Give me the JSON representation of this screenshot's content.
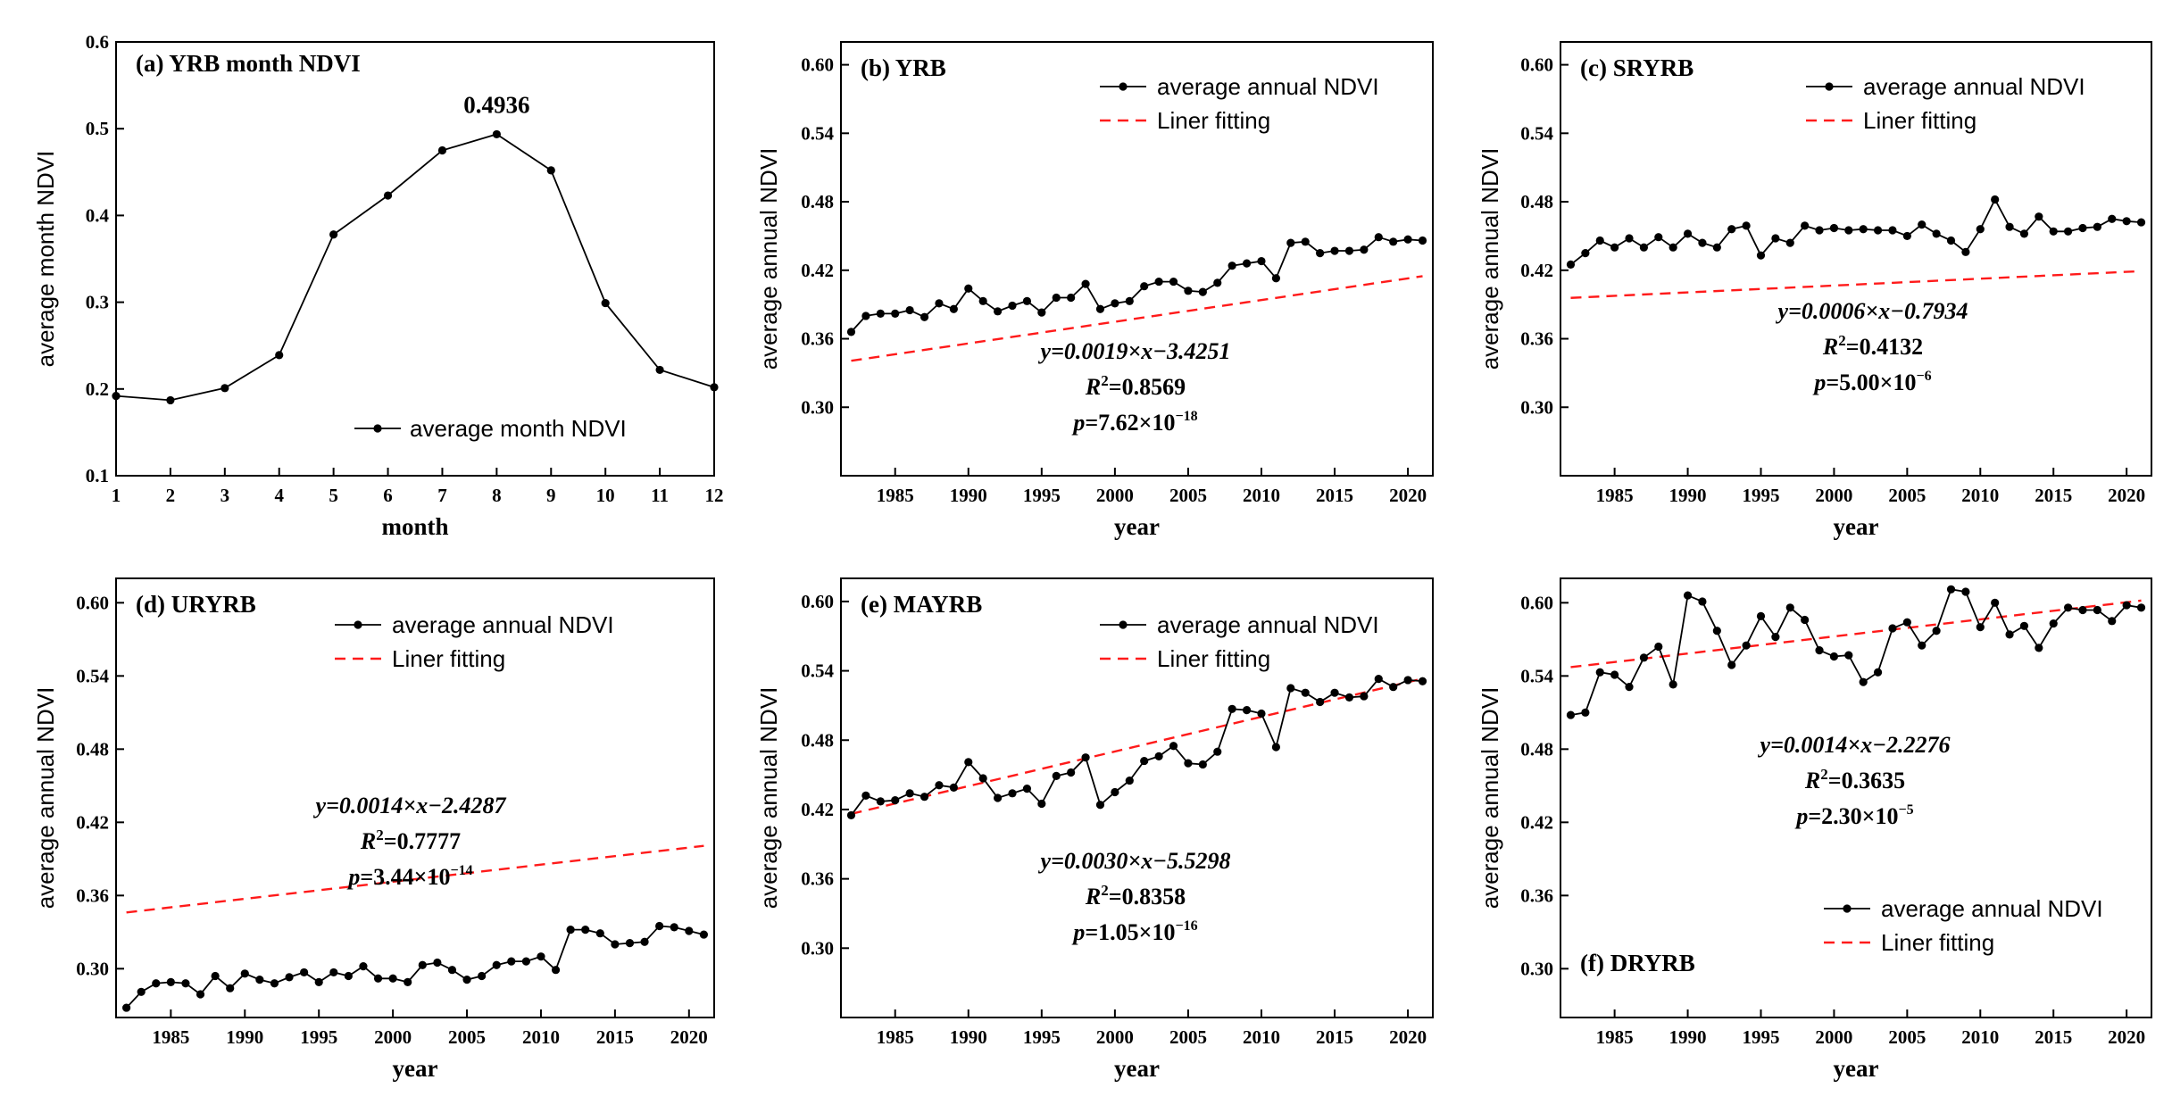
{
  "chart_data": [
    {
      "id": "a",
      "type": "line",
      "title": "(a) YRB month NDVI",
      "xlabel": "month",
      "ylabel": "average month NDVI",
      "xlim": [
        1,
        12
      ],
      "ylim": [
        0.1,
        0.6
      ],
      "xticks": [
        1,
        2,
        3,
        4,
        5,
        6,
        7,
        8,
        9,
        10,
        11,
        12
      ],
      "xtick_labels": [
        "1",
        "2",
        "3",
        "4",
        "5",
        "6",
        "7",
        "8",
        "9",
        "10",
        "11",
        "12"
      ],
      "yticks": [
        0.1,
        0.2,
        0.3,
        0.4,
        0.5,
        0.6
      ],
      "ytick_labels": [
        "0.1",
        "0.2",
        "0.3",
        "0.4",
        "0.5",
        "0.6"
      ],
      "legend_position": "bottom-right",
      "series": [
        {
          "name": "average month NDVI",
          "x": [
            1,
            2,
            3,
            4,
            5,
            6,
            7,
            8,
            9,
            10,
            11,
            12
          ],
          "values": [
            0.192,
            0.187,
            0.201,
            0.239,
            0.378,
            0.423,
            0.475,
            0.4936,
            0.452,
            0.299,
            0.222,
            0.202
          ]
        }
      ],
      "peak_annotation": {
        "label": "0.4936",
        "x": 8,
        "y": 0.4936
      }
    },
    {
      "id": "b",
      "type": "line",
      "title": "(b) YRB",
      "xlabel": "year",
      "ylabel": "average annual NDVI",
      "xlim": [
        1981.3,
        2021.7
      ],
      "ylim": [
        0.24,
        0.62
      ],
      "xticks": [
        1985,
        1990,
        1995,
        2000,
        2005,
        2010,
        2015,
        2020
      ],
      "xtick_labels": [
        "1985",
        "1990",
        "1995",
        "2000",
        "2005",
        "2010",
        "2015",
        "2020"
      ],
      "yticks": [
        0.3,
        0.36,
        0.42,
        0.48,
        0.54,
        0.6
      ],
      "ytick_labels": [
        "0.30",
        "0.36",
        "0.42",
        "0.48",
        "0.54",
        "0.60"
      ],
      "legend_position": "top-right",
      "legend": [
        "average annual NDVI",
        "Liner fitting"
      ],
      "x": [
        1982,
        1983,
        1984,
        1985,
        1986,
        1987,
        1988,
        1989,
        1990,
        1991,
        1992,
        1993,
        1994,
        1995,
        1996,
        1997,
        1998,
        1999,
        2000,
        2001,
        2002,
        2003,
        2004,
        2005,
        2006,
        2007,
        2008,
        2009,
        2010,
        2011,
        2012,
        2013,
        2014,
        2015,
        2016,
        2017,
        2018,
        2019,
        2020,
        2021
      ],
      "series": [
        {
          "name": "average annual NDVI",
          "values": [
            0.366,
            0.38,
            0.382,
            0.382,
            0.385,
            0.379,
            0.391,
            0.386,
            0.404,
            0.393,
            0.384,
            0.389,
            0.393,
            0.383,
            0.396,
            0.396,
            0.408,
            0.386,
            0.391,
            0.393,
            0.406,
            0.41,
            0.41,
            0.402,
            0.401,
            0.409,
            0.424,
            0.426,
            0.428,
            0.413,
            0.444,
            0.445,
            0.435,
            0.437,
            0.437,
            0.438,
            0.449,
            0.445,
            0.447,
            0.446
          ]
        }
      ],
      "fit": {
        "name": "Liner fitting",
        "slope": 0.0019,
        "intercept": -3.4251
      },
      "equation": {
        "y_line": "y=0.0019×x−3.4251",
        "r2_text": "=0.8569",
        "p_mantissa": "=7.62×10",
        "p_exponent": "−18"
      }
    },
    {
      "id": "c",
      "type": "line",
      "title": "(c) SRYRB",
      "xlabel": "year",
      "ylabel": "average annual NDVI",
      "xlim": [
        1981.3,
        2021.7
      ],
      "ylim": [
        0.24,
        0.62
      ],
      "xticks": [
        1985,
        1990,
        1995,
        2000,
        2005,
        2010,
        2015,
        2020
      ],
      "xtick_labels": [
        "1985",
        "1990",
        "1995",
        "2000",
        "2005",
        "2010",
        "2015",
        "2020"
      ],
      "yticks": [
        0.3,
        0.36,
        0.42,
        0.48,
        0.54,
        0.6
      ],
      "ytick_labels": [
        "0.30",
        "0.36",
        "0.42",
        "0.48",
        "0.54",
        "0.60"
      ],
      "legend_position": "top-right",
      "legend": [
        "average annual NDVI",
        "Liner fitting"
      ],
      "x": [
        1982,
        1983,
        1984,
        1985,
        1986,
        1987,
        1988,
        1989,
        1990,
        1991,
        1992,
        1993,
        1994,
        1995,
        1996,
        1997,
        1998,
        1999,
        2000,
        2001,
        2002,
        2003,
        2004,
        2005,
        2006,
        2007,
        2008,
        2009,
        2010,
        2011,
        2012,
        2013,
        2014,
        2015,
        2016,
        2017,
        2018,
        2019,
        2020,
        2021
      ],
      "series": [
        {
          "name": "average annual NDVI",
          "values": [
            0.425,
            0.435,
            0.446,
            0.44,
            0.448,
            0.44,
            0.449,
            0.44,
            0.452,
            0.444,
            0.44,
            0.456,
            0.459,
            0.433,
            0.448,
            0.444,
            0.459,
            0.455,
            0.457,
            0.455,
            0.456,
            0.455,
            0.455,
            0.45,
            0.46,
            0.452,
            0.446,
            0.436,
            0.456,
            0.482,
            0.458,
            0.452,
            0.467,
            0.454,
            0.454,
            0.457,
            0.458,
            0.465,
            0.463,
            0.462
          ]
        }
      ],
      "fit": {
        "name": "Liner fitting",
        "slope": 0.0006,
        "intercept": -0.7934
      },
      "equation": {
        "y_line": "y=0.0006×x−0.7934",
        "r2_text": "=0.4132",
        "p_mantissa": "=5.00×10",
        "p_exponent": "−6"
      }
    },
    {
      "id": "d",
      "type": "line",
      "title": "(d) URYRB",
      "xlabel": "year",
      "ylabel": "average annual NDVI",
      "xlim": [
        1981.3,
        2021.7
      ],
      "ylim": [
        0.26,
        0.62
      ],
      "xticks": [
        1985,
        1990,
        1995,
        2000,
        2005,
        2010,
        2015,
        2020
      ],
      "xtick_labels": [
        "1985",
        "1990",
        "1995",
        "2000",
        "2005",
        "2010",
        "2015",
        "2020"
      ],
      "yticks": [
        0.3,
        0.36,
        0.42,
        0.48,
        0.54,
        0.6
      ],
      "ytick_labels": [
        "0.30",
        "0.36",
        "0.42",
        "0.48",
        "0.54",
        "0.60"
      ],
      "legend_position": "top-right",
      "legend": [
        "average annual NDVI",
        "Liner fitting"
      ],
      "x": [
        1982,
        1983,
        1984,
        1985,
        1986,
        1987,
        1988,
        1989,
        1990,
        1991,
        1992,
        1993,
        1994,
        1995,
        1996,
        1997,
        1998,
        1999,
        2000,
        2001,
        2002,
        2003,
        2004,
        2005,
        2006,
        2007,
        2008,
        2009,
        2010,
        2011,
        2012,
        2013,
        2014,
        2015,
        2016,
        2017,
        2018,
        2019,
        2020,
        2021
      ],
      "series": [
        {
          "name": "average annual NDVI",
          "values": [
            0.268,
            0.281,
            0.288,
            0.289,
            0.288,
            0.279,
            0.294,
            0.284,
            0.296,
            0.291,
            0.288,
            0.293,
            0.297,
            0.289,
            0.297,
            0.294,
            0.302,
            0.292,
            0.292,
            0.289,
            0.303,
            0.305,
            0.299,
            0.291,
            0.294,
            0.303,
            0.306,
            0.306,
            0.31,
            0.299,
            0.332,
            0.332,
            0.329,
            0.32,
            0.321,
            0.322,
            0.335,
            0.334,
            0.331,
            0.328
          ]
        }
      ],
      "fit": {
        "name": "Liner fitting",
        "slope": 0.0014,
        "intercept": -2.4287
      },
      "equation": {
        "y_line": "y=0.0014×x−2.4287",
        "r2_text": "=0.7777",
        "p_mantissa": "=3.44×10",
        "p_exponent": "−14"
      }
    },
    {
      "id": "e",
      "type": "line",
      "title": "(e) MAYRB",
      "xlabel": "year",
      "ylabel": "average annual NDVI",
      "xlim": [
        1981.3,
        2021.7
      ],
      "ylim": [
        0.24,
        0.62
      ],
      "xticks": [
        1985,
        1990,
        1995,
        2000,
        2005,
        2010,
        2015,
        2020
      ],
      "xtick_labels": [
        "1985",
        "1990",
        "1995",
        "2000",
        "2005",
        "2010",
        "2015",
        "2020"
      ],
      "yticks": [
        0.3,
        0.36,
        0.42,
        0.48,
        0.54,
        0.6
      ],
      "ytick_labels": [
        "0.30",
        "0.36",
        "0.42",
        "0.48",
        "0.54",
        "0.60"
      ],
      "legend_position": "top-right",
      "legend": [
        "average annual NDVI",
        "Liner fitting"
      ],
      "x": [
        1982,
        1983,
        1984,
        1985,
        1986,
        1987,
        1988,
        1989,
        1990,
        1991,
        1992,
        1993,
        1994,
        1995,
        1996,
        1997,
        1998,
        1999,
        2000,
        2001,
        2002,
        2003,
        2004,
        2005,
        2006,
        2007,
        2008,
        2009,
        2010,
        2011,
        2012,
        2013,
        2014,
        2015,
        2016,
        2017,
        2018,
        2019,
        2020,
        2021
      ],
      "series": [
        {
          "name": "average annual NDVI",
          "values": [
            0.415,
            0.432,
            0.427,
            0.428,
            0.434,
            0.431,
            0.441,
            0.439,
            0.461,
            0.447,
            0.43,
            0.434,
            0.438,
            0.425,
            0.449,
            0.452,
            0.465,
            0.424,
            0.435,
            0.445,
            0.462,
            0.466,
            0.475,
            0.46,
            0.459,
            0.47,
            0.507,
            0.506,
            0.503,
            0.474,
            0.525,
            0.521,
            0.513,
            0.521,
            0.517,
            0.518,
            0.533,
            0.526,
            0.532,
            0.531
          ]
        }
      ],
      "fit": {
        "name": "Liner fitting",
        "slope": 0.003,
        "intercept": -5.5298
      },
      "equation": {
        "y_line": "y=0.0030×x−5.5298",
        "r2_text": "=0.8358",
        "p_mantissa": "=1.05×10",
        "p_exponent": "−16"
      }
    },
    {
      "id": "f",
      "type": "line",
      "title": "(f) DRYRB",
      "xlabel": "year",
      "ylabel": "average annual NDVI",
      "xlim": [
        1981.3,
        2021.7
      ],
      "ylim": [
        0.26,
        0.62
      ],
      "xticks": [
        1985,
        1990,
        1995,
        2000,
        2005,
        2010,
        2015,
        2020
      ],
      "xtick_labels": [
        "1985",
        "1990",
        "1995",
        "2000",
        "2005",
        "2010",
        "2015",
        "2020"
      ],
      "yticks": [
        0.3,
        0.36,
        0.42,
        0.48,
        0.54,
        0.6
      ],
      "ytick_labels": [
        "0.30",
        "0.36",
        "0.42",
        "0.48",
        "0.54",
        "0.60"
      ],
      "legend_position": "bottom-right",
      "legend": [
        "average annual NDVI",
        "Liner fitting"
      ],
      "x": [
        1982,
        1983,
        1984,
        1985,
        1986,
        1987,
        1988,
        1989,
        1990,
        1991,
        1992,
        1993,
        1994,
        1995,
        1996,
        1997,
        1998,
        1999,
        2000,
        2001,
        2002,
        2003,
        2004,
        2005,
        2006,
        2007,
        2008,
        2009,
        2010,
        2011,
        2012,
        2013,
        2014,
        2015,
        2016,
        2017,
        2018,
        2019,
        2020,
        2021
      ],
      "series": [
        {
          "name": "average annual NDVI",
          "values": [
            0.508,
            0.51,
            0.543,
            0.541,
            0.531,
            0.555,
            0.564,
            0.533,
            0.606,
            0.601,
            0.577,
            0.549,
            0.565,
            0.589,
            0.572,
            0.596,
            0.586,
            0.561,
            0.556,
            0.557,
            0.535,
            0.543,
            0.579,
            0.584,
            0.565,
            0.577,
            0.611,
            0.609,
            0.58,
            0.6,
            0.574,
            0.581,
            0.563,
            0.583,
            0.596,
            0.594,
            0.594,
            0.585,
            0.598,
            0.596
          ]
        }
      ],
      "fit": {
        "name": "Liner fitting",
        "slope": 0.0014,
        "intercept": -2.2276
      },
      "equation": {
        "y_line": "y=0.0014×x−2.2276",
        "r2_text": "=0.3635",
        "p_mantissa": "=2.30×10",
        "p_exponent": "−5"
      }
    }
  ]
}
